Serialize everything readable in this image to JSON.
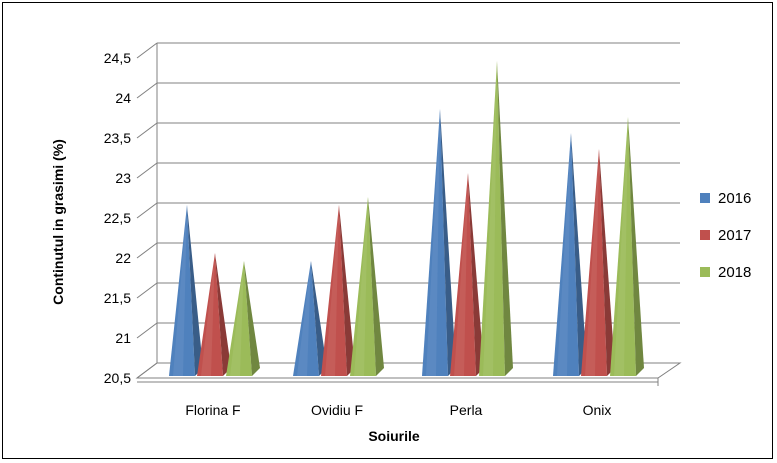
{
  "chart_data": {
    "type": "bar",
    "style": "3d-pyramid",
    "categories": [
      "Florina F",
      "Ovidiu F",
      "Perla",
      "Onix"
    ],
    "series": [
      {
        "name": "2016",
        "color": "#4F81BD",
        "values": [
          22.5,
          21.8,
          23.7,
          23.4
        ]
      },
      {
        "name": "2017",
        "color": "#C0504D",
        "values": [
          21.9,
          22.5,
          22.9,
          23.2
        ]
      },
      {
        "name": "2018",
        "color": "#9BBB59",
        "values": [
          21.8,
          22.6,
          24.3,
          23.6
        ]
      }
    ],
    "ylabel": "Continutul in grasimi (%)",
    "xlabel": "Soiurile",
    "ylim": [
      20.5,
      24.5
    ],
    "yticks": [
      "20,5",
      "21",
      "21,5",
      "22",
      "22,5",
      "23",
      "23,5",
      "24",
      "24,5"
    ],
    "grid": true,
    "legend": "right"
  }
}
